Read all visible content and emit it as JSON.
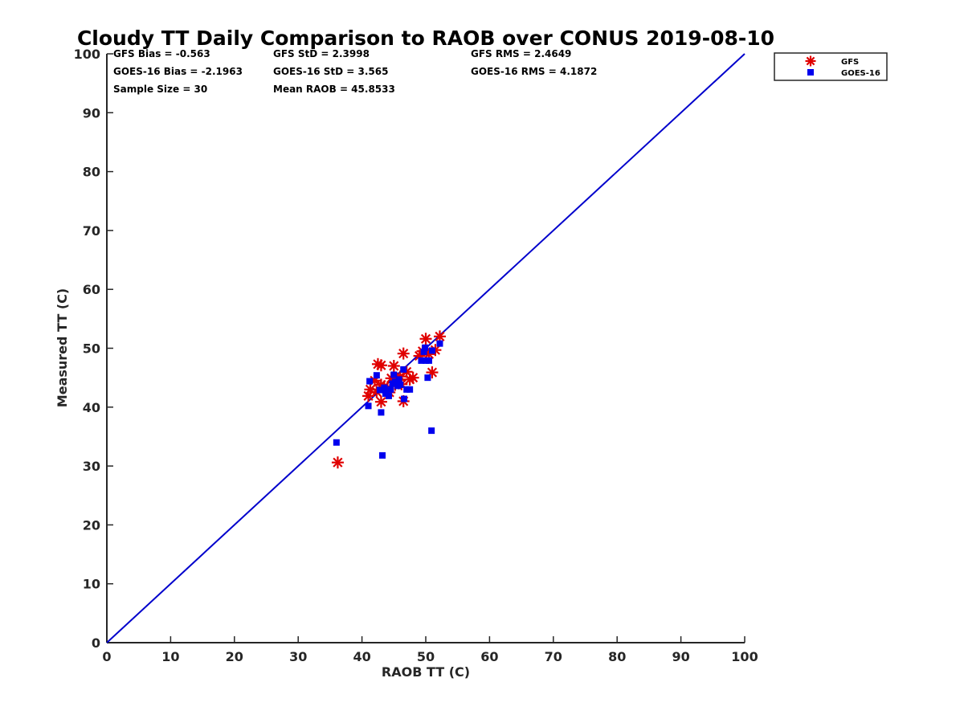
{
  "chart_data": {
    "type": "scatter",
    "title": "Cloudy TT Daily Comparison to RAOB over CONUS 2019-08-10",
    "xlabel": "RAOB TT (C)",
    "ylabel": "Measured TT (C)",
    "xlim": [
      0,
      100
    ],
    "ylim": [
      0,
      100
    ],
    "xticks": [
      "0",
      "10",
      "20",
      "30",
      "40",
      "50",
      "60",
      "70",
      "80",
      "90",
      "100"
    ],
    "yticks": [
      "0",
      "10",
      "20",
      "30",
      "40",
      "50",
      "60",
      "70",
      "80",
      "90",
      "100"
    ],
    "grid": false,
    "legend_placement": "outside-top-right",
    "reference_line": {
      "from": [
        0,
        0
      ],
      "to": [
        100,
        100
      ],
      "color": "#0000cc"
    },
    "stats": [
      [
        "GFS Bias = -0.563",
        "GFS StD = 2.3998",
        "GFS RMS = 2.4649"
      ],
      [
        "GOES-16 Bias = -2.1963",
        "GOES-16 StD = 3.565",
        "GOES-16 RMS = 4.1872"
      ],
      [
        "Sample Size = 30",
        "Mean RAOB = 45.8533",
        ""
      ]
    ],
    "series": [
      {
        "name": "GFS",
        "marker": "asterisk",
        "color": "#e00000",
        "points": [
          [
            36.2,
            30.6
          ],
          [
            41.0,
            41.9
          ],
          [
            41.3,
            43.0
          ],
          [
            42.0,
            44.5
          ],
          [
            42.5,
            47.3
          ],
          [
            43.0,
            47.1
          ],
          [
            43.0,
            43.8
          ],
          [
            43.0,
            40.9
          ],
          [
            43.5,
            43.5
          ],
          [
            44.3,
            42.5
          ],
          [
            44.6,
            44.9
          ],
          [
            45.0,
            47.0
          ],
          [
            45.2,
            43.8
          ],
          [
            45.5,
            44.6
          ],
          [
            46.0,
            45.2
          ],
          [
            46.5,
            49.1
          ],
          [
            46.5,
            41.0
          ],
          [
            47.0,
            46.0
          ],
          [
            47.5,
            44.7
          ],
          [
            48.0,
            45.0
          ],
          [
            49.0,
            48.7
          ],
          [
            50.0,
            51.6
          ],
          [
            50.5,
            49.0
          ],
          [
            51.0,
            45.9
          ],
          [
            51.5,
            49.7
          ],
          [
            52.2,
            52.0
          ],
          [
            44.0,
            43.2
          ],
          [
            46.2,
            43.9
          ],
          [
            42.3,
            42.6
          ],
          [
            49.5,
            49.5
          ]
        ]
      },
      {
        "name": "GOES-16",
        "marker": "square",
        "color": "#0000ee",
        "points": [
          [
            36.0,
            34.0
          ],
          [
            41.0,
            40.2
          ],
          [
            41.2,
            44.4
          ],
          [
            42.3,
            45.4
          ],
          [
            42.8,
            42.9
          ],
          [
            43.0,
            39.1
          ],
          [
            43.2,
            31.8
          ],
          [
            43.5,
            43.3
          ],
          [
            44.2,
            41.9
          ],
          [
            44.5,
            43.0
          ],
          [
            45.0,
            45.5
          ],
          [
            45.2,
            44.3
          ],
          [
            45.6,
            43.6
          ],
          [
            46.0,
            43.8
          ],
          [
            46.5,
            46.4
          ],
          [
            46.6,
            41.4
          ],
          [
            47.0,
            43.0
          ],
          [
            47.5,
            43.0
          ],
          [
            49.3,
            47.9
          ],
          [
            49.7,
            49.4
          ],
          [
            50.0,
            47.9
          ],
          [
            50.3,
            45.0
          ],
          [
            50.5,
            47.9
          ],
          [
            50.9,
            36.0
          ],
          [
            51.0,
            49.6
          ],
          [
            52.2,
            50.8
          ],
          [
            44.8,
            44.0
          ],
          [
            45.8,
            44.7
          ],
          [
            49.9,
            50.1
          ],
          [
            43.7,
            42.3
          ]
        ]
      }
    ]
  }
}
